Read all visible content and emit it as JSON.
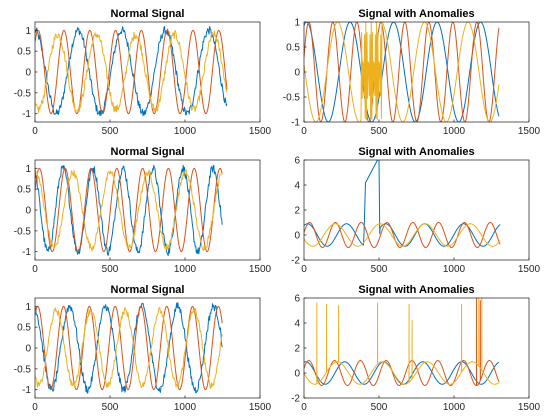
{
  "figure": {
    "layout": "3x2 subplots"
  },
  "colors": {
    "series1": "#0072BD",
    "series2": "#D95319",
    "series3": "#EDB120",
    "axes": "#262626"
  },
  "chart_data": [
    {
      "type": "line",
      "title": "Normal Signal",
      "xlim": [
        0,
        1500
      ],
      "ylim": [
        -1.2,
        1.2
      ],
      "xticks": [
        0,
        500,
        1000,
        1500
      ],
      "xtick_labels": [
        "0",
        "500",
        "1000",
        "1500"
      ],
      "yticks": [
        -1,
        -0.5,
        0,
        0.5,
        1
      ],
      "ytick_labels": [
        "-1",
        "-0.5",
        "0",
        "0.5",
        "1"
      ],
      "x": [
        0,
        1280
      ],
      "series": [
        {
          "period": 290,
          "phase": 1.6,
          "amp": 1.0,
          "noise": 0.1,
          "x_end": 1280
        },
        {
          "period": 172,
          "phase": 0.8,
          "amp": 1.0,
          "noise": 0.0,
          "x_end": 1280
        },
        {
          "period": 260,
          "phase": 4.2,
          "amp": 0.9,
          "noise": 0.1,
          "x_end": 1280
        }
      ],
      "grid": false
    },
    {
      "type": "line",
      "title": "Signal with Anomalies",
      "xlim": [
        0,
        1500
      ],
      "ylim": [
        -1,
        1
      ],
      "xticks": [
        0,
        500,
        1000,
        1500
      ],
      "xtick_labels": [
        "0",
        "500",
        "1000",
        "1500"
      ],
      "yticks": [
        -1,
        -0.5,
        0,
        0.5,
        1
      ],
      "ytick_labels": [
        "-1",
        "-0.5",
        "0",
        "0.5",
        "1"
      ],
      "series": [
        {
          "period": 290,
          "phase": 1.2,
          "amp": 1.0,
          "noise": 0.0,
          "x_end": 1300
        },
        {
          "period": 160,
          "phase": 0.3,
          "amp": 1.0,
          "noise": 0.0,
          "x_end": 1300
        },
        {
          "period": 290,
          "phase": 3.0,
          "amp": 1.0,
          "noise": 0.0,
          "x_end": 1300
        }
      ],
      "anomalies": {
        "type": "high-frequency burst",
        "x_range": [
          380,
          520
        ],
        "series": 2
      },
      "grid": false
    },
    {
      "type": "line",
      "title": "Normal Signal",
      "xlim": [
        0,
        1500
      ],
      "ylim": [
        -1.2,
        1.2
      ],
      "xticks": [
        0,
        500,
        1000,
        1500
      ],
      "xtick_labels": [
        "0",
        "500",
        "1000",
        "1500"
      ],
      "yticks": [
        -1,
        -0.5,
        0,
        0.5,
        1
      ],
      "ytick_labels": [
        "-1",
        "-0.5",
        "0",
        "0.5",
        "1"
      ],
      "series": [
        {
          "period": 200,
          "phase": 2.0,
          "amp": 1.0,
          "noise": 0.1,
          "x_end": 1250
        },
        {
          "period": 172,
          "phase": 0.5,
          "amp": 1.0,
          "noise": 0.0,
          "x_end": 1250
        },
        {
          "period": 250,
          "phase": 1.5,
          "amp": 0.9,
          "noise": 0.08,
          "x_end": 1250
        }
      ],
      "grid": false
    },
    {
      "type": "line",
      "title": "Signal with Anomalies",
      "xlim": [
        0,
        1500
      ],
      "ylim": [
        -2,
        6
      ],
      "xticks": [
        0,
        500,
        1000,
        1500
      ],
      "xtick_labels": [
        "0",
        "500",
        "1000",
        "1500"
      ],
      "yticks": [
        -2,
        0,
        2,
        4,
        6
      ],
      "ytick_labels": [
        "-2",
        "0",
        "2",
        "4",
        "6"
      ],
      "series": [
        {
          "period": 260,
          "phase": 1.0,
          "amp": 0.9,
          "noise": 0.0,
          "x_end": 1310
        },
        {
          "period": 172,
          "phase": 0.2,
          "amp": 1.0,
          "noise": 0.0,
          "x_end": 1310
        },
        {
          "period": 300,
          "phase": 3.5,
          "amp": 0.9,
          "noise": 0.0,
          "x_end": 1310
        }
      ],
      "anomalies": {
        "type": "step ramp",
        "series": 0,
        "segment": [
          [
            400,
            0.1
          ],
          [
            410,
            4.2
          ],
          [
            420,
            4.4
          ],
          [
            490,
            6.0
          ],
          [
            500,
            6.0
          ],
          [
            505,
            0.1
          ]
        ]
      },
      "grid": false
    },
    {
      "type": "line",
      "title": "Normal Signal",
      "xlim": [
        0,
        1500
      ],
      "ylim": [
        -1.2,
        1.2
      ],
      "xticks": [
        0,
        500,
        1000,
        1500
      ],
      "xtick_labels": [
        "0",
        "500",
        "1000",
        "1500"
      ],
      "yticks": [
        -1,
        -0.5,
        0,
        0.5,
        1
      ],
      "ytick_labels": [
        "-1",
        "-0.5",
        "0",
        "0.5",
        "1"
      ],
      "series": [
        {
          "period": 240,
          "phase": 1.8,
          "amp": 1.0,
          "noise": 0.1,
          "x_end": 1250
        },
        {
          "period": 172,
          "phase": 0.9,
          "amp": 1.0,
          "noise": 0.0,
          "x_end": 1250
        },
        {
          "period": 230,
          "phase": 4.0,
          "amp": 0.9,
          "noise": 0.08,
          "x_end": 1250
        }
      ],
      "grid": false
    },
    {
      "type": "line",
      "title": "Signal with Anomalies",
      "xlim": [
        0,
        1500
      ],
      "ylim": [
        -2,
        6
      ],
      "xticks": [
        0,
        500,
        1000,
        1500
      ],
      "xtick_labels": [
        "0",
        "500",
        "1000",
        "1500"
      ],
      "yticks": [
        -2,
        0,
        2,
        4,
        6
      ],
      "ytick_labels": [
        "-2",
        "0",
        "2",
        "4",
        "6"
      ],
      "series": [
        {
          "period": 260,
          "phase": 1.3,
          "amp": 0.9,
          "noise": 0.0,
          "x_end": 1300
        },
        {
          "period": 172,
          "phase": 0.4,
          "amp": 1.0,
          "noise": 0.0,
          "x_end": 1300
        },
        {
          "period": 300,
          "phase": 3.2,
          "amp": 0.9,
          "noise": 0.0,
          "x_end": 1300
        }
      ],
      "anomalies": {
        "type": "spikes",
        "spikes": [
          {
            "x": 85,
            "y": 5.6,
            "series": 2
          },
          {
            "x": 150,
            "y": 5.5,
            "series": 2
          },
          {
            "x": 230,
            "y": 5.4,
            "series": 2
          },
          {
            "x": 490,
            "y": 5.6,
            "series": 2
          },
          {
            "x": 700,
            "y": 5.5,
            "series": 2
          },
          {
            "x": 720,
            "y": 4.2,
            "series": 2
          },
          {
            "x": 1050,
            "y": 5.5,
            "series": 2
          },
          {
            "x": 1150,
            "y": 6.0,
            "series": 1
          },
          {
            "x": 1165,
            "y": 6.0,
            "series": 2
          },
          {
            "x": 1175,
            "y": 5.8,
            "series": 1
          },
          {
            "x": 1185,
            "y": 6.0,
            "series": 2
          }
        ]
      },
      "grid": false
    }
  ]
}
